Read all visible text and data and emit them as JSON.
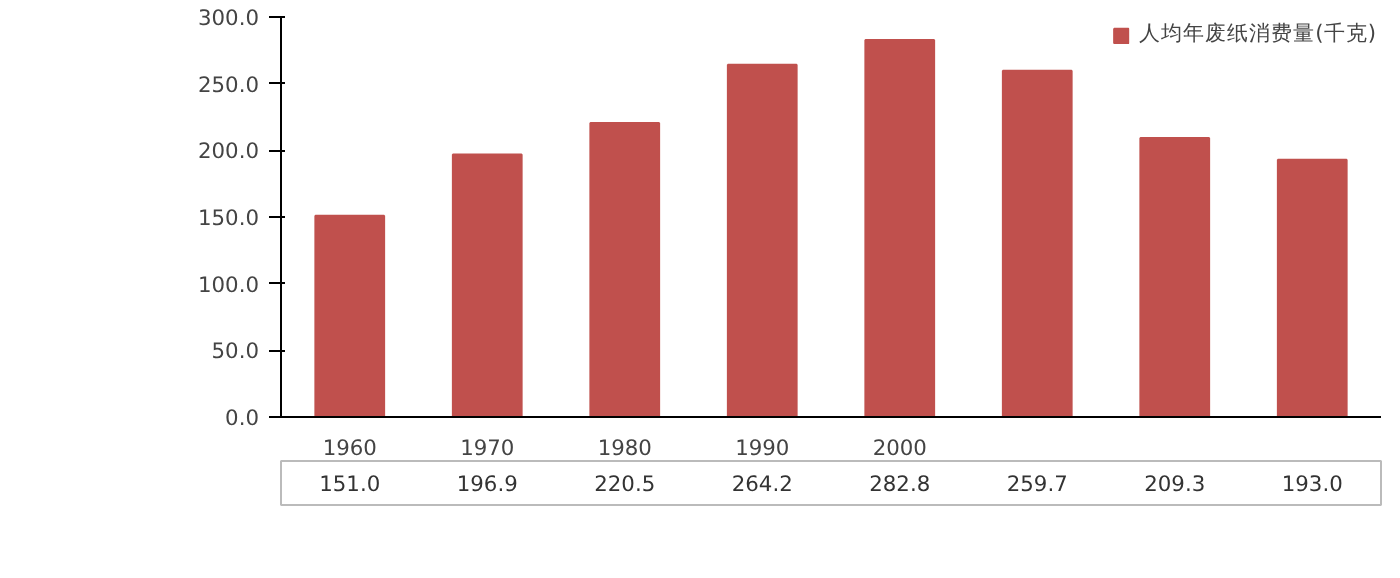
{
  "chart_data": {
    "type": "bar",
    "categories": [
      "1960",
      "1970",
      "1980",
      "1990",
      "2000",
      null,
      null,
      null
    ],
    "series": [
      {
        "name": "人均年废纸消费量(千克)",
        "color": "#c0504d",
        "values": [
          151.0,
          196.9,
          220.5,
          264.2,
          282.8,
          259.7,
          209.3,
          193.0
        ]
      }
    ],
    "ylim": [
      0,
      300
    ],
    "yticks": [
      {
        "value": 0,
        "label": "0.0"
      },
      {
        "value": 50,
        "label": "50.0"
      },
      {
        "value": 100,
        "label": "100.0"
      },
      {
        "value": 150,
        "label": "150.0"
      },
      {
        "value": 200,
        "label": "200.0"
      },
      {
        "value": 250,
        "label": "250.0"
      },
      {
        "value": 300,
        "label": "300.0"
      }
    ],
    "value_labels": [
      "151.0",
      "196.9",
      "220.5",
      "264.2",
      "282.8",
      "259.7",
      "209.3",
      "193.0"
    ],
    "grid": false,
    "legend": "top right"
  }
}
